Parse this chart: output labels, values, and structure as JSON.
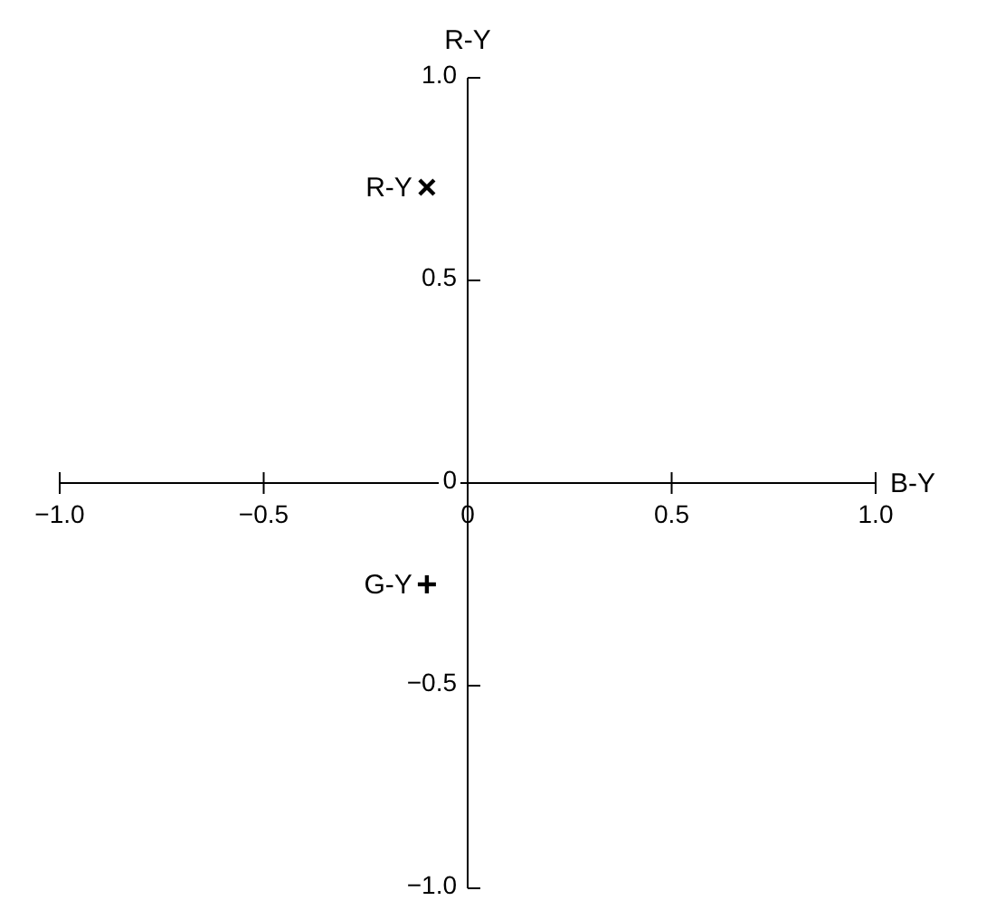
{
  "chart_data": {
    "type": "scatter",
    "xlabel": "B-Y",
    "ylabel": "R-Y",
    "xlim": [
      -1.0,
      1.0
    ],
    "ylim": [
      -1.0,
      1.0
    ],
    "xticks": [
      {
        "value": -1,
        "label": "−1.0"
      },
      {
        "value": -0.5,
        "label": "−0.5"
      },
      0,
      0.5,
      {
        "value": 1,
        "label": "1.0"
      }
    ],
    "yticks": [
      {
        "value": -1,
        "label": "−1.0"
      },
      {
        "value": -0.5,
        "label": "−0.5"
      },
      0,
      0.5,
      {
        "value": 1,
        "label": "1.0"
      }
    ],
    "grid": false,
    "legend": false,
    "series": [
      {
        "name": "R-Y",
        "color": "#000000",
        "marker": "x",
        "x": [
          -0.1
        ],
        "values": [
          0.73
        ]
      },
      {
        "name": "G-Y",
        "color": "#000000",
        "marker": "cross",
        "x": [
          -0.1
        ],
        "values": [
          -0.25
        ]
      }
    ]
  }
}
